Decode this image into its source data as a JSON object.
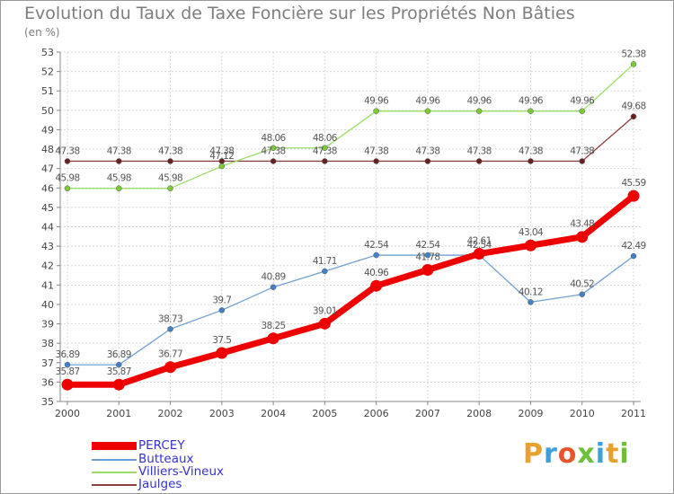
{
  "title": "Evolution du Taux de Taxe Foncière sur les Propriétés Non Bâties",
  "subtitle": "(en %)",
  "brand": "Proxiti",
  "brand_colors": [
    "#e8a12a",
    "#3f9fd8",
    "#e8542a",
    "#6dbf3e",
    "#3f9fd8",
    "#e8a12a",
    "#6dbf3e"
  ],
  "chart_data": {
    "type": "line",
    "x": [
      "2000",
      "2001",
      "2002",
      "2003",
      "2004",
      "2005",
      "2006",
      "2007",
      "2008",
      "2009",
      "2010",
      "2011"
    ],
    "ylim": [
      35,
      53
    ],
    "yticks": [
      "35",
      "36",
      "37",
      "38",
      "39",
      "40",
      "41",
      "42",
      "43",
      "44",
      "45",
      "46",
      "47",
      "48",
      "49",
      "50",
      "51",
      "52",
      "53"
    ],
    "grid": true,
    "legend_position": "bottom-left",
    "series": [
      {
        "name": "PERCEY",
        "color": "#ee0000",
        "marker_color": "#ee0000",
        "values": [
          35.87,
          35.87,
          36.77,
          37.5,
          38.25,
          39.01,
          40.96,
          41.78,
          42.61,
          43.04,
          43.48,
          45.59
        ],
        "labels": [
          "35.87",
          "35.87",
          "36.77",
          "37.5",
          "38.25",
          "39.01",
          "40.96",
          "41.78",
          "42.61",
          "43.04",
          "43.48",
          "45.59"
        ]
      },
      {
        "name": "Butteaux",
        "color": "#6fa0d0",
        "marker_color": "#3f82c8",
        "values": [
          36.89,
          36.89,
          38.73,
          39.7,
          40.89,
          41.71,
          42.54,
          42.54,
          42.54,
          40.12,
          40.52,
          42.49
        ],
        "labels": [
          "36.89",
          "36.89",
          "38.73",
          "39.7",
          "40.89",
          "41.71",
          "42.54",
          "42.54",
          "42.54",
          "40.12",
          "40.52",
          "42.49"
        ]
      },
      {
        "name": "Villiers-Vineux",
        "color": "#99dd66",
        "marker_color": "#7acc33",
        "values": [
          45.98,
          45.98,
          45.98,
          47.12,
          48.06,
          48.06,
          49.96,
          49.96,
          49.96,
          49.96,
          49.96,
          52.38
        ],
        "labels": [
          "45.98",
          "45.98",
          "45.98",
          "47.12",
          "48.06",
          "48.06",
          "49.96",
          "49.96",
          "49.96",
          "49.96",
          "49.96",
          "52.38"
        ]
      },
      {
        "name": "Jaulges",
        "color": "#8b4040",
        "marker_color": "#6a2020",
        "values": [
          47.38,
          47.38,
          47.38,
          47.38,
          47.38,
          47.38,
          47.38,
          47.38,
          47.38,
          47.38,
          47.38,
          49.68
        ],
        "labels": [
          "47.38",
          "47.38",
          "47.38",
          "47.38",
          "47.38",
          "47.38",
          "47.38",
          "47.38",
          "47.38",
          "47.38",
          "47.38",
          "49.68"
        ]
      }
    ]
  }
}
